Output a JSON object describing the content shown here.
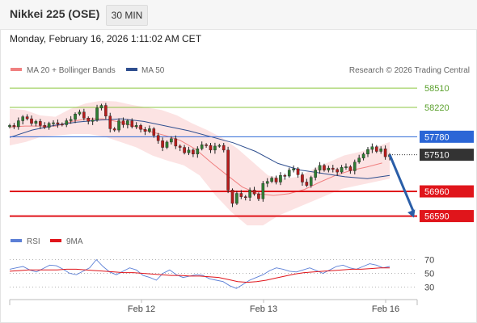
{
  "header": {
    "title": "Nikkei 225 (OSE)",
    "interval": "30 MIN",
    "datetime": "Monday, February 16, 2026 1:11:02 AM CET",
    "credit": "Research © 2026 Trading Central"
  },
  "colors": {
    "bollinger": "#f08080",
    "ma50": "#2f4f8f",
    "resistance": "#8dc641",
    "pivot": "#2b66d6",
    "support": "#e0151b",
    "last": "#333333",
    "rsi": "#5b7fd6",
    "rsi_ma": "#e0151b",
    "arrow": "#2a5ea8"
  },
  "chart_data": {
    "type": "line",
    "instrument": "Nikkei 225 (OSE)",
    "interval": "30 MIN",
    "x_tick_labels": [
      "Feb 12",
      "Feb 13",
      "Feb 16"
    ],
    "legend": [
      {
        "key": "ma20bb",
        "label": "MA 20 + Bollinger Bands",
        "color": "#f08080"
      },
      {
        "key": "ma50",
        "label": "MA 50",
        "color": "#2f4f8f"
      }
    ],
    "levels": [
      {
        "value": 58510,
        "label": "58510",
        "kind": "resistance"
      },
      {
        "value": 58220,
        "label": "58220",
        "kind": "resistance"
      },
      {
        "value": 57780,
        "label": "57780",
        "kind": "pivot"
      },
      {
        "value": 57510,
        "label": "57510",
        "kind": "last"
      },
      {
        "value": 56960,
        "label": "56960",
        "kind": "support"
      },
      {
        "value": 56590,
        "label": "56590",
        "kind": "support"
      }
    ],
    "ylim": [
      56500,
      58620
    ],
    "close_series": [
      57950,
      57930,
      58020,
      58080,
      58050,
      57980,
      58010,
      57950,
      57920,
      57980,
      57990,
      57970,
      57960,
      58020,
      58040,
      58120,
      58150,
      58060,
      58010,
      58030,
      58210,
      58250,
      58090,
      57900,
      57880,
      58020,
      57960,
      58020,
      57930,
      57950,
      57890,
      57860,
      57900,
      57800,
      57720,
      57620,
      57700,
      57750,
      57640,
      57620,
      57540,
      57580,
      57520,
      57600,
      57660,
      57650,
      57580,
      57640,
      57650,
      57580,
      56980,
      56780,
      56930,
      56880,
      56870,
      56980,
      56920,
      56850,
      57080,
      57110,
      57160,
      57100,
      57200,
      57190,
      57280,
      57300,
      57210,
      57100,
      57050,
      57170,
      57280,
      57350,
      57280,
      57310,
      57290,
      57250,
      57320,
      57330,
      57270,
      57400,
      57460,
      57520,
      57590,
      57630,
      57560,
      57600,
      57480,
      57510
    ],
    "ma50_series": [
      57770,
      57880,
      57950,
      58000,
      58030,
      58050,
      58010,
      57940,
      57870,
      57780,
      57690,
      57560,
      57380,
      57280,
      57230,
      57180,
      57150,
      57200
    ],
    "bb_upper_series": [
      58200,
      58180,
      58100,
      58080,
      58200,
      58280,
      58320,
      58310,
      58260,
      58220,
      58180,
      58100,
      57980,
      57880,
      57760,
      57600,
      57400,
      57200,
      57150,
      57180,
      57300,
      57400,
      57500,
      57550,
      57620,
      57700
    ],
    "bb_lower_series": [
      57650,
      57700,
      57780,
      57800,
      57820,
      57820,
      57780,
      57700,
      57620,
      57500,
      57420,
      57350,
      57200,
      56900,
      56650,
      56450,
      56450,
      56600,
      56700,
      56800,
      56900,
      57000,
      57050,
      57100,
      57150
    ],
    "rsi": {
      "legend": [
        {
          "label": "RSI",
          "color": "#5b7fd6"
        },
        {
          "label": "9MA",
          "color": "#e0151b"
        }
      ],
      "levels": [
        70,
        50,
        30
      ],
      "ylim": [
        20,
        80
      ],
      "rsi_series": [
        56,
        58,
        60,
        55,
        52,
        57,
        62,
        61,
        56,
        50,
        48,
        53,
        58,
        70,
        60,
        52,
        48,
        53,
        58,
        55,
        47,
        44,
        40,
        50,
        55,
        48,
        44,
        46,
        48,
        47,
        42,
        40,
        38,
        32,
        28,
        34,
        40,
        44,
        48,
        54,
        58,
        56,
        53,
        52,
        55,
        58,
        54,
        50,
        55,
        60,
        62,
        58,
        56,
        60,
        64,
        62,
        58,
        60
      ],
      "ma9_series": [
        53,
        54,
        55,
        55,
        55,
        55,
        56,
        56,
        55,
        54,
        53,
        52,
        51,
        51,
        50,
        49,
        48,
        47,
        47,
        46,
        46,
        45,
        44,
        41,
        38,
        37,
        38,
        40,
        43,
        46,
        49,
        51,
        52,
        53,
        54,
        55,
        56,
        56,
        57,
        58,
        58
      ]
    }
  }
}
